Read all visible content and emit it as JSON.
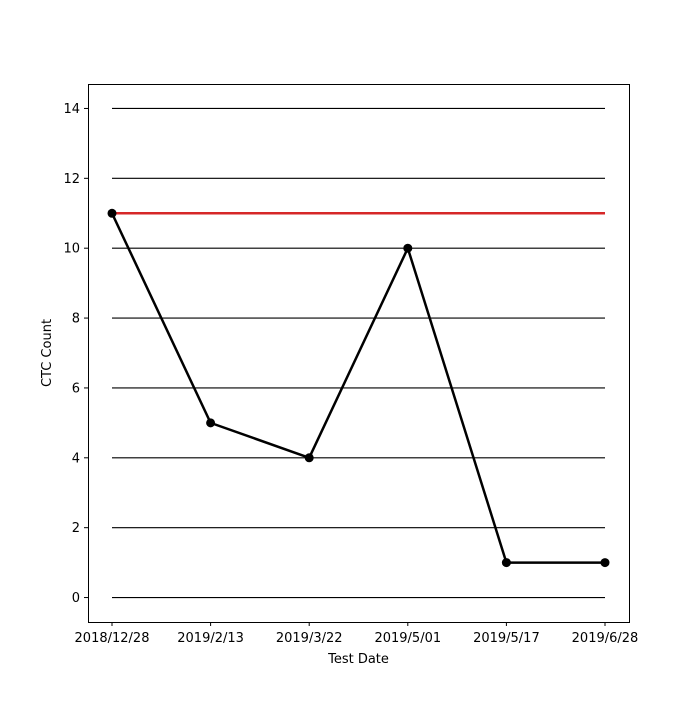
{
  "chart_data": {
    "type": "line",
    "title": "",
    "xlabel": "Test Date",
    "ylabel": "CTC Count",
    "categories": [
      "2018/12/28",
      "2019/2/13",
      "2019/3/22",
      "2019/5/01",
      "2019/5/17",
      "2019/6/28"
    ],
    "series": [
      {
        "values": [
          11,
          5,
          4,
          10,
          1,
          1
        ],
        "color": "#000000",
        "marker": "circle"
      }
    ],
    "reference_line": {
      "y": 11,
      "color": "#d62728"
    },
    "ylim": [
      -0.7,
      14.7
    ],
    "yticks": [
      0,
      2,
      4,
      6,
      8,
      10,
      12,
      14
    ],
    "grid": "horizontal"
  }
}
